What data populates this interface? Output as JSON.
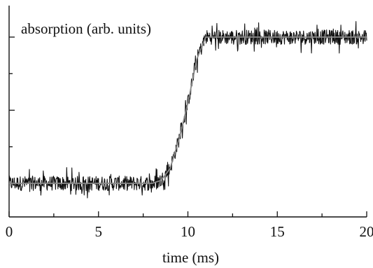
{
  "chart_data": {
    "type": "line",
    "title": "",
    "xlabel": "time (ms)",
    "ylabel": "absorption (arb. units)",
    "xlim": [
      0,
      20
    ],
    "x_ticks": [
      0,
      5,
      10,
      15,
      20
    ],
    "x_tick_labels": [
      "0",
      "5",
      "10",
      "15",
      "20"
    ],
    "ylim": [
      0,
      1
    ],
    "y_major_ticks": [
      0,
      0.5,
      1
    ],
    "y_tick_labels_shown": false,
    "grid": false,
    "legend": "none",
    "series": [
      {
        "kind": "noisy-measurement",
        "color": "#111111",
        "x": [
          0,
          1,
          2,
          3,
          4,
          5,
          6,
          7,
          8,
          8.5,
          9,
          9.5,
          10,
          10.5,
          11,
          11.5,
          12,
          13,
          14,
          15,
          16,
          17,
          18,
          19,
          20
        ],
        "y": [
          0,
          0,
          0,
          0,
          0,
          0,
          0,
          0,
          0,
          0.02,
          0.1,
          0.3,
          0.55,
          0.85,
          1.0,
          1.0,
          1.0,
          1.0,
          1.0,
          1.0,
          1.0,
          1.0,
          1.0,
          1.0,
          1.0
        ],
        "noise_amplitude": 0.05
      },
      {
        "kind": "fit",
        "color": "#8a8a8a",
        "x": [
          0,
          1,
          2,
          3,
          4,
          5,
          6,
          7,
          8,
          8.5,
          9,
          9.5,
          10,
          10.5,
          11,
          11.5,
          12,
          13,
          14,
          15,
          16,
          17,
          18,
          19,
          20
        ],
        "y": [
          0,
          0,
          0,
          0,
          0,
          0,
          0,
          0,
          0,
          0.02,
          0.1,
          0.3,
          0.55,
          0.85,
          1.0,
          1.0,
          1.0,
          1.0,
          1.0,
          1.0,
          1.0,
          1.0,
          1.0,
          1.0,
          1.0
        ]
      }
    ]
  }
}
